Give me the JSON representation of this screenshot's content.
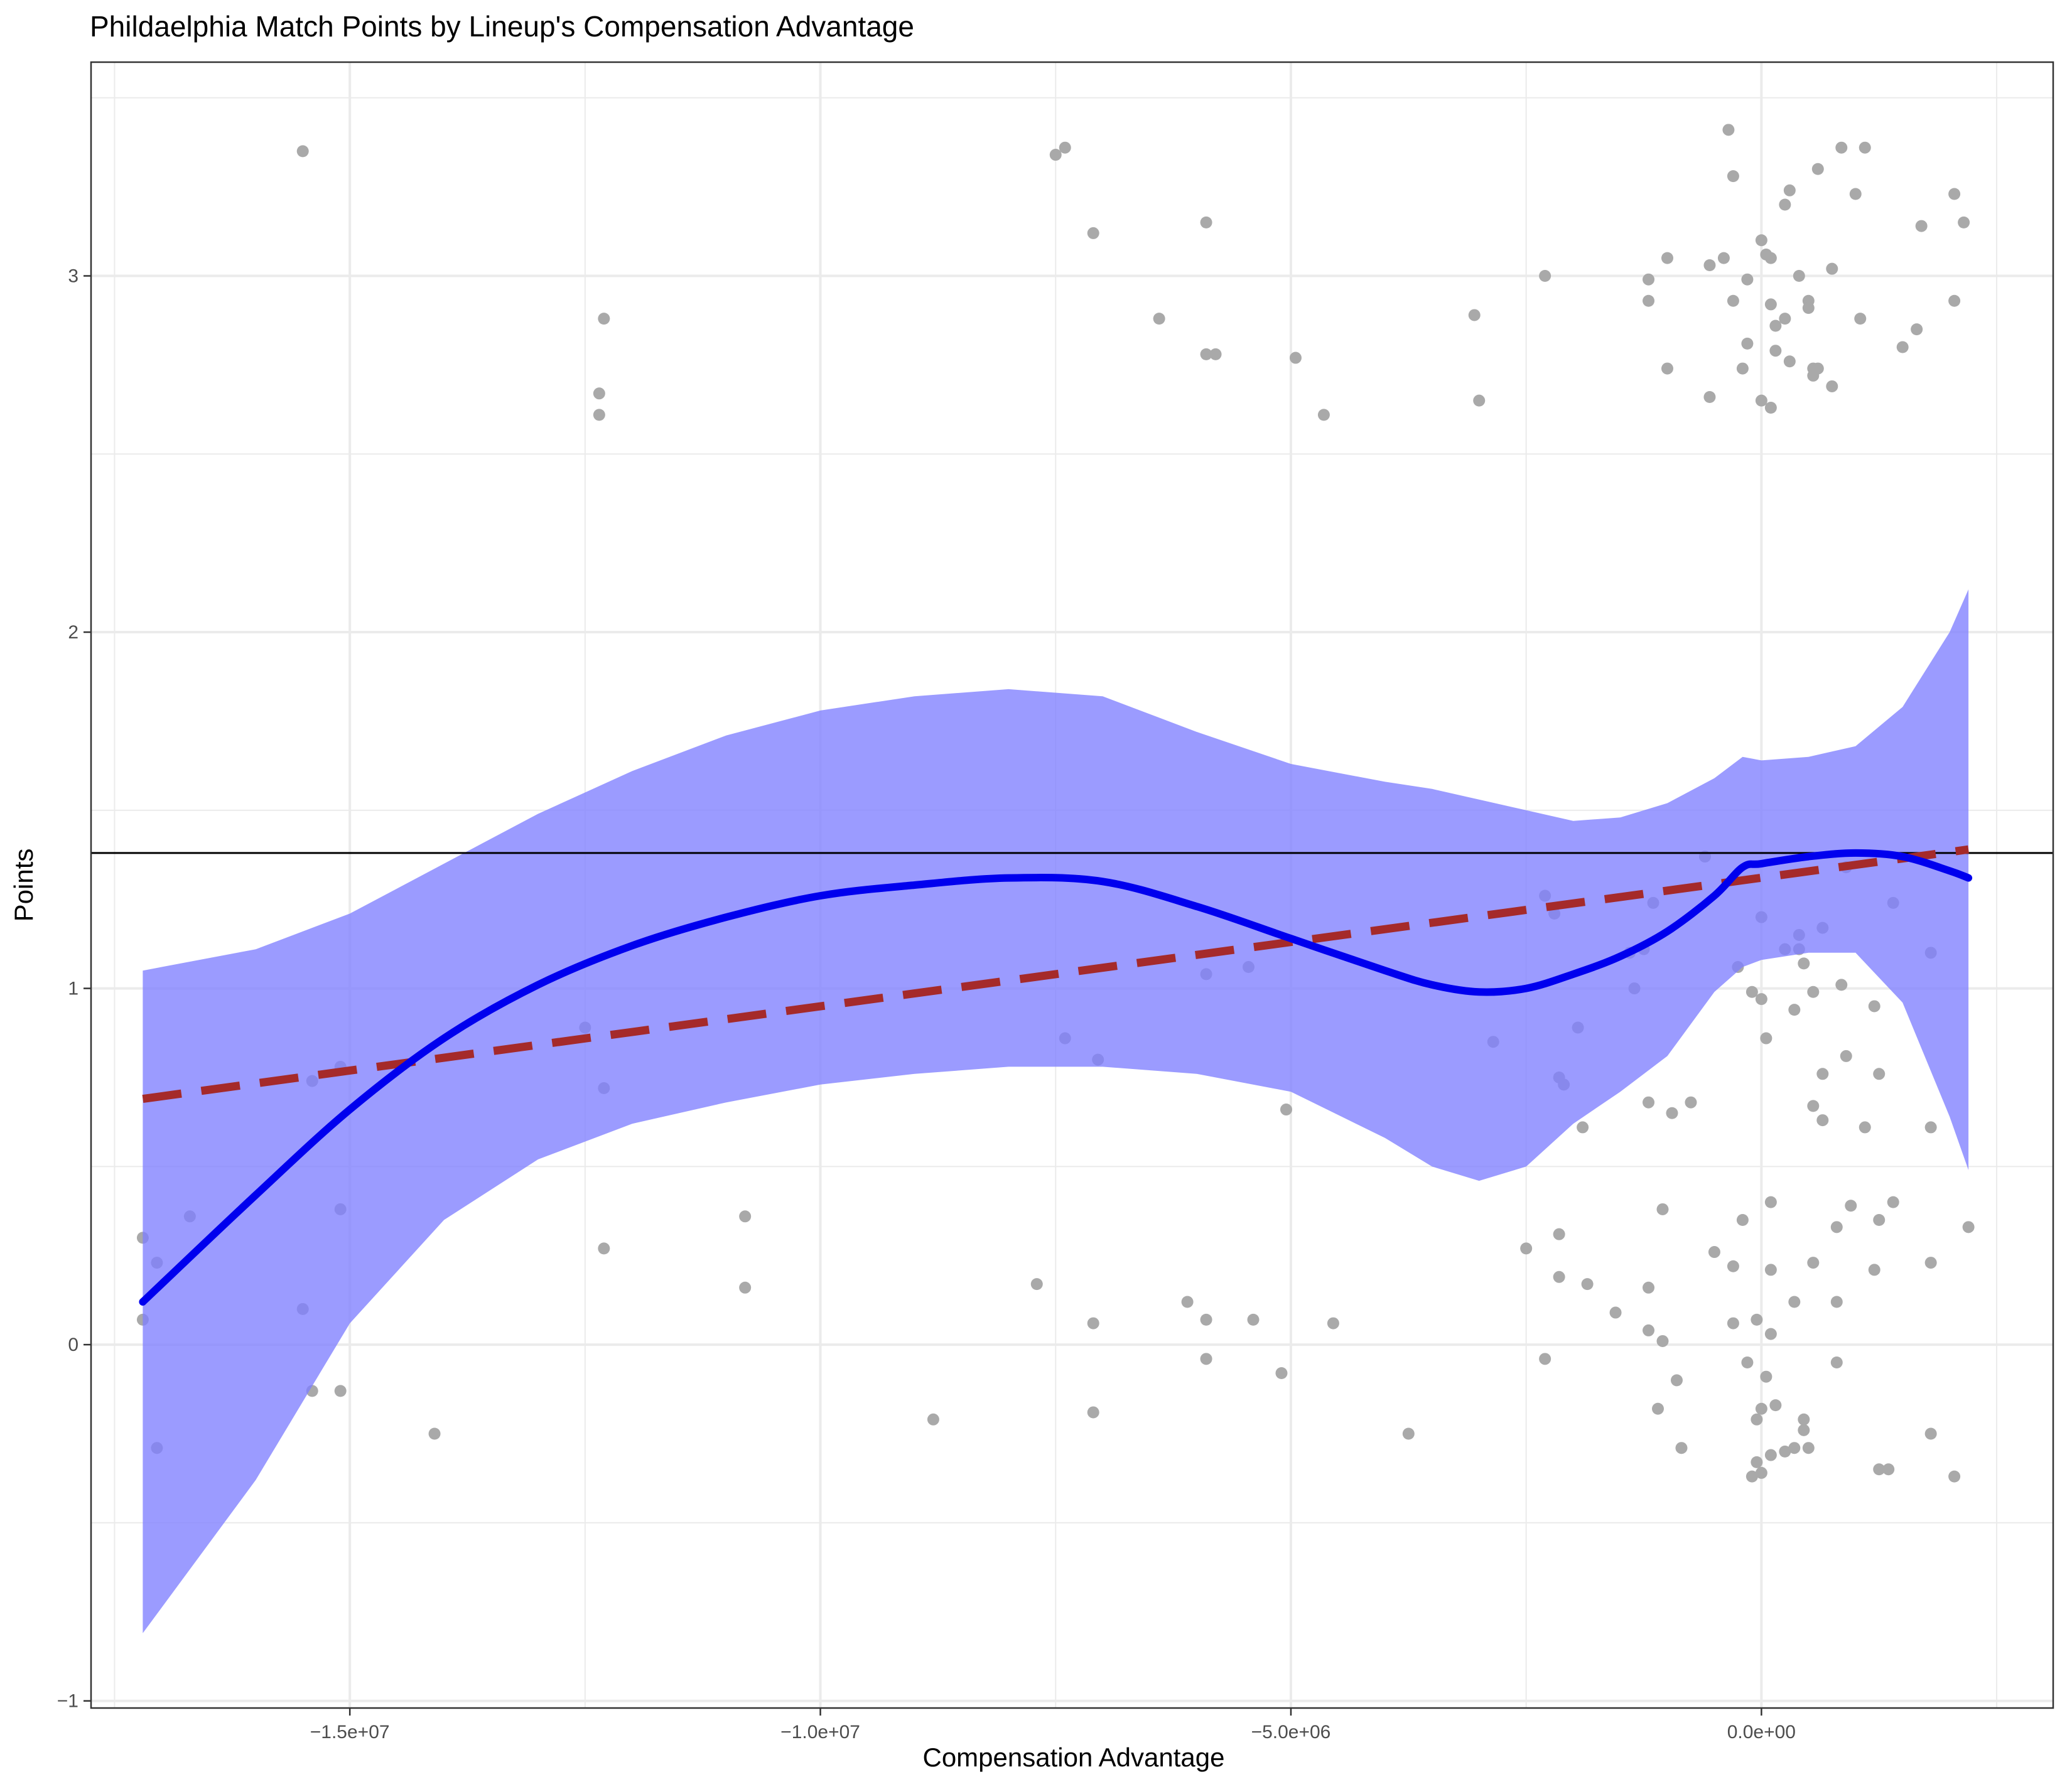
{
  "chart_data": {
    "type": "scatter",
    "title": "Phildaelphia Match Points by Lineup's Compensation Advantage",
    "xlabel": "Compensation Advantage",
    "ylabel": "Points",
    "xlim": [
      -17750000,
      3100000
    ],
    "ylim": [
      -1.02,
      3.6
    ],
    "x_ticks": [
      {
        "value": -15000000,
        "label": "−1.5e+07"
      },
      {
        "value": -10000000,
        "label": "−1.0e+07"
      },
      {
        "value": -5000000,
        "label": "−5.0e+06"
      },
      {
        "value": 0,
        "label": "0.0e+00"
      }
    ],
    "y_ticks": [
      {
        "value": -1,
        "label": "−1"
      },
      {
        "value": 0,
        "label": "0"
      },
      {
        "value": 1,
        "label": "1"
      },
      {
        "value": 2,
        "label": "2"
      },
      {
        "value": 3,
        "label": "3"
      }
    ],
    "grid": true,
    "colors": {
      "points": "#a9a9a9",
      "ribbon": "#7f7fff",
      "smooth": "#0000ee",
      "linear": "#a52a2a",
      "reference": "#000000",
      "grid": "#ebebeb"
    },
    "reference_line_y": 1.38,
    "linear_fit": {
      "x": [
        -17200000,
        2200000
      ],
      "y": [
        0.69,
        1.39
      ]
    },
    "smooth_fit": [
      {
        "x": -17200000,
        "y": 0.12,
        "lower": -0.81,
        "upper": 1.05
      },
      {
        "x": -16000000,
        "y": 0.42,
        "lower": -0.38,
        "upper": 1.11
      },
      {
        "x": -15000000,
        "y": 0.66,
        "lower": 0.06,
        "upper": 1.21
      },
      {
        "x": -14000000,
        "y": 0.86,
        "lower": 0.35,
        "upper": 1.35
      },
      {
        "x": -13000000,
        "y": 1.01,
        "lower": 0.52,
        "upper": 1.49
      },
      {
        "x": -12000000,
        "y": 1.12,
        "lower": 0.62,
        "upper": 1.61
      },
      {
        "x": -11000000,
        "y": 1.2,
        "lower": 0.68,
        "upper": 1.71
      },
      {
        "x": -10000000,
        "y": 1.26,
        "lower": 0.73,
        "upper": 1.78
      },
      {
        "x": -9000000,
        "y": 1.29,
        "lower": 0.76,
        "upper": 1.82
      },
      {
        "x": -8000000,
        "y": 1.31,
        "lower": 0.78,
        "upper": 1.84
      },
      {
        "x": -7000000,
        "y": 1.3,
        "lower": 0.78,
        "upper": 1.82
      },
      {
        "x": -6000000,
        "y": 1.23,
        "lower": 0.76,
        "upper": 1.72
      },
      {
        "x": -5000000,
        "y": 1.14,
        "lower": 0.71,
        "upper": 1.63
      },
      {
        "x": -4000000,
        "y": 1.05,
        "lower": 0.58,
        "upper": 1.58
      },
      {
        "x": -3500000,
        "y": 1.01,
        "lower": 0.5,
        "upper": 1.56
      },
      {
        "x": -3000000,
        "y": 0.99,
        "lower": 0.46,
        "upper": 1.53
      },
      {
        "x": -2500000,
        "y": 1.0,
        "lower": 0.5,
        "upper": 1.5
      },
      {
        "x": -2000000,
        "y": 1.04,
        "lower": 0.62,
        "upper": 1.47
      },
      {
        "x": -1500000,
        "y": 1.09,
        "lower": 0.71,
        "upper": 1.48
      },
      {
        "x": -1000000,
        "y": 1.16,
        "lower": 0.81,
        "upper": 1.52
      },
      {
        "x": -500000,
        "y": 1.26,
        "lower": 0.99,
        "upper": 1.59
      },
      {
        "x": -200000,
        "y": 1.34,
        "lower": 1.06,
        "upper": 1.65
      },
      {
        "x": 0,
        "y": 1.35,
        "lower": 1.08,
        "upper": 1.64
      },
      {
        "x": 500000,
        "y": 1.37,
        "lower": 1.1,
        "upper": 1.65
      },
      {
        "x": 1000000,
        "y": 1.38,
        "lower": 1.1,
        "upper": 1.68
      },
      {
        "x": 1500000,
        "y": 1.37,
        "lower": 0.96,
        "upper": 1.79
      },
      {
        "x": 2000000,
        "y": 1.33,
        "lower": 0.64,
        "upper": 2.0
      },
      {
        "x": 2200000,
        "y": 1.31,
        "lower": 0.49,
        "upper": 2.12
      }
    ],
    "points": [
      {
        "x": -17200000,
        "y": 0.3
      },
      {
        "x": -17200000,
        "y": 0.07
      },
      {
        "x": -17050000,
        "y": 0.23
      },
      {
        "x": -17050000,
        "y": -0.29
      },
      {
        "x": -16700000,
        "y": 0.36
      },
      {
        "x": -15500000,
        "y": 3.35
      },
      {
        "x": -15500000,
        "y": 0.1
      },
      {
        "x": -15400000,
        "y": 0.74
      },
      {
        "x": -15400000,
        "y": -0.13
      },
      {
        "x": -15100000,
        "y": 0.78
      },
      {
        "x": -15100000,
        "y": 0.38
      },
      {
        "x": -15100000,
        "y": -0.13
      },
      {
        "x": -14100000,
        "y": -0.25
      },
      {
        "x": -12500000,
        "y": 0.89
      },
      {
        "x": -12300000,
        "y": 2.88
      },
      {
        "x": -12350000,
        "y": 2.67
      },
      {
        "x": -12350000,
        "y": 2.61
      },
      {
        "x": -12300000,
        "y": 0.72
      },
      {
        "x": -12300000,
        "y": 0.27
      },
      {
        "x": -10800000,
        "y": 0.36
      },
      {
        "x": -10800000,
        "y": 0.16
      },
      {
        "x": -8800000,
        "y": -0.21
      },
      {
        "x": -7700000,
        "y": 0.17
      },
      {
        "x": -7500000,
        "y": 3.34
      },
      {
        "x": -7400000,
        "y": 3.36
      },
      {
        "x": -7400000,
        "y": 0.86
      },
      {
        "x": -7100000,
        "y": 3.12
      },
      {
        "x": -7100000,
        "y": 0.06
      },
      {
        "x": -7100000,
        "y": -0.19
      },
      {
        "x": -7050000,
        "y": 0.8
      },
      {
        "x": -6400000,
        "y": 2.88
      },
      {
        "x": -6100000,
        "y": 0.12
      },
      {
        "x": -5900000,
        "y": 3.15
      },
      {
        "x": -5900000,
        "y": 2.78
      },
      {
        "x": -5800000,
        "y": 2.78
      },
      {
        "x": -5900000,
        "y": 1.04
      },
      {
        "x": -5900000,
        "y": 0.07
      },
      {
        "x": -5900000,
        "y": -0.04
      },
      {
        "x": -5450000,
        "y": 1.06
      },
      {
        "x": -5400000,
        "y": 0.07
      },
      {
        "x": -5050000,
        "y": 0.66
      },
      {
        "x": -5100000,
        "y": -0.08
      },
      {
        "x": -4950000,
        "y": 2.77
      },
      {
        "x": -4650000,
        "y": 2.61
      },
      {
        "x": -4550000,
        "y": 0.06
      },
      {
        "x": -3750000,
        "y": -0.25
      },
      {
        "x": -3050000,
        "y": 2.89
      },
      {
        "x": -3000000,
        "y": 2.65
      },
      {
        "x": -2850000,
        "y": 0.85
      },
      {
        "x": -2500000,
        "y": 0.27
      },
      {
        "x": -2300000,
        "y": 3.0
      },
      {
        "x": -2300000,
        "y": 1.26
      },
      {
        "x": -2300000,
        "y": -0.04
      },
      {
        "x": -2200000,
        "y": 1.21
      },
      {
        "x": -2150000,
        "y": 0.75
      },
      {
        "x": -2100000,
        "y": 0.73
      },
      {
        "x": -2150000,
        "y": 0.31
      },
      {
        "x": -2150000,
        "y": 0.19
      },
      {
        "x": -1950000,
        "y": 0.89
      },
      {
        "x": -1900000,
        "y": 0.61
      },
      {
        "x": -1850000,
        "y": 0.17
      },
      {
        "x": -1550000,
        "y": 0.09
      },
      {
        "x": -1400000,
        "y": 1.1
      },
      {
        "x": -1350000,
        "y": 1.0
      },
      {
        "x": -1200000,
        "y": 2.99
      },
      {
        "x": -1200000,
        "y": 2.93
      },
      {
        "x": -1200000,
        "y": 0.68
      },
      {
        "x": -1200000,
        "y": 0.16
      },
      {
        "x": -1200000,
        "y": 0.04
      },
      {
        "x": -1150000,
        "y": 1.24
      },
      {
        "x": -1250000,
        "y": 1.11
      },
      {
        "x": -1050000,
        "y": 0.38
      },
      {
        "x": -1050000,
        "y": 0.01
      },
      {
        "x": -1100000,
        "y": -0.18
      },
      {
        "x": -1000000,
        "y": 3.05
      },
      {
        "x": -1000000,
        "y": 2.74
      },
      {
        "x": -950000,
        "y": 0.65
      },
      {
        "x": -900000,
        "y": -0.1
      },
      {
        "x": -850000,
        "y": -0.29
      },
      {
        "x": -750000,
        "y": 0.68
      },
      {
        "x": -600000,
        "y": 1.37
      },
      {
        "x": -550000,
        "y": 3.03
      },
      {
        "x": -550000,
        "y": 2.66
      },
      {
        "x": -500000,
        "y": 0.26
      },
      {
        "x": -400000,
        "y": 3.05
      },
      {
        "x": -350000,
        "y": 3.41
      },
      {
        "x": -300000,
        "y": 3.28
      },
      {
        "x": -300000,
        "y": 2.93
      },
      {
        "x": -300000,
        "y": 0.22
      },
      {
        "x": -300000,
        "y": 0.06
      },
      {
        "x": -250000,
        "y": 1.06
      },
      {
        "x": -200000,
        "y": 2.74
      },
      {
        "x": -200000,
        "y": 0.35
      },
      {
        "x": -150000,
        "y": 2.99
      },
      {
        "x": -150000,
        "y": 2.81
      },
      {
        "x": -150000,
        "y": -0.05
      },
      {
        "x": -100000,
        "y": 0.99
      },
      {
        "x": -100000,
        "y": -0.37
      },
      {
        "x": -50000,
        "y": 0.07
      },
      {
        "x": -50000,
        "y": -0.21
      },
      {
        "x": -50000,
        "y": -0.33
      },
      {
        "x": 0,
        "y": 3.1
      },
      {
        "x": 0,
        "y": 2.65
      },
      {
        "x": 0,
        "y": 1.2
      },
      {
        "x": 0,
        "y": 0.97
      },
      {
        "x": 0,
        "y": -0.18
      },
      {
        "x": 0,
        "y": -0.36
      },
      {
        "x": 50000,
        "y": 3.06
      },
      {
        "x": 50000,
        "y": 0.86
      },
      {
        "x": 50000,
        "y": -0.09
      },
      {
        "x": 100000,
        "y": 3.05
      },
      {
        "x": 100000,
        "y": 2.92
      },
      {
        "x": 100000,
        "y": 2.63
      },
      {
        "x": 100000,
        "y": 0.4
      },
      {
        "x": 100000,
        "y": 0.21
      },
      {
        "x": 100000,
        "y": 0.03
      },
      {
        "x": 100000,
        "y": -0.31
      },
      {
        "x": 150000,
        "y": 2.86
      },
      {
        "x": 150000,
        "y": 2.79
      },
      {
        "x": 150000,
        "y": -0.17
      },
      {
        "x": 250000,
        "y": 3.2
      },
      {
        "x": 250000,
        "y": 2.88
      },
      {
        "x": 250000,
        "y": 1.11
      },
      {
        "x": 250000,
        "y": -0.3
      },
      {
        "x": 300000,
        "y": 2.76
      },
      {
        "x": 300000,
        "y": 3.24
      },
      {
        "x": 350000,
        "y": 0.94
      },
      {
        "x": 350000,
        "y": 0.12
      },
      {
        "x": 350000,
        "y": -0.29
      },
      {
        "x": 400000,
        "y": 3.0
      },
      {
        "x": 400000,
        "y": 1.11
      },
      {
        "x": 400000,
        "y": 1.15
      },
      {
        "x": 450000,
        "y": 1.07
      },
      {
        "x": 450000,
        "y": -0.21
      },
      {
        "x": 450000,
        "y": -0.24
      },
      {
        "x": 500000,
        "y": 2.93
      },
      {
        "x": 500000,
        "y": 2.91
      },
      {
        "x": 500000,
        "y": -0.29
      },
      {
        "x": 550000,
        "y": 2.74
      },
      {
        "x": 550000,
        "y": 2.72
      },
      {
        "x": 550000,
        "y": 0.99
      },
      {
        "x": 550000,
        "y": 0.67
      },
      {
        "x": 550000,
        "y": 0.23
      },
      {
        "x": 600000,
        "y": 3.3
      },
      {
        "x": 600000,
        "y": 2.74
      },
      {
        "x": 650000,
        "y": 1.17
      },
      {
        "x": 650000,
        "y": 0.63
      },
      {
        "x": 650000,
        "y": 0.76
      },
      {
        "x": 750000,
        "y": 3.02
      },
      {
        "x": 750000,
        "y": 2.69
      },
      {
        "x": 800000,
        "y": 0.33
      },
      {
        "x": 800000,
        "y": 0.12
      },
      {
        "x": 800000,
        "y": -0.05
      },
      {
        "x": 850000,
        "y": 3.36
      },
      {
        "x": 850000,
        "y": 1.01
      },
      {
        "x": 900000,
        "y": 1.34
      },
      {
        "x": 900000,
        "y": 0.81
      },
      {
        "x": 950000,
        "y": 0.39
      },
      {
        "x": 1000000,
        "y": 3.23
      },
      {
        "x": 1050000,
        "y": 2.88
      },
      {
        "x": 1100000,
        "y": 3.36
      },
      {
        "x": 1100000,
        "y": 0.61
      },
      {
        "x": 1200000,
        "y": 0.95
      },
      {
        "x": 1200000,
        "y": 0.21
      },
      {
        "x": 1250000,
        "y": 0.76
      },
      {
        "x": 1250000,
        "y": 0.35
      },
      {
        "x": 1250000,
        "y": -0.35
      },
      {
        "x": 1350000,
        "y": -0.35
      },
      {
        "x": 1400000,
        "y": 1.24
      },
      {
        "x": 1400000,
        "y": 0.4
      },
      {
        "x": 1500000,
        "y": 2.8
      },
      {
        "x": 1650000,
        "y": 2.85
      },
      {
        "x": 1700000,
        "y": 3.14
      },
      {
        "x": 1800000,
        "y": 1.1
      },
      {
        "x": 1800000,
        "y": 0.61
      },
      {
        "x": 1800000,
        "y": 0.23
      },
      {
        "x": 1800000,
        "y": -0.25
      },
      {
        "x": 2050000,
        "y": 3.23
      },
      {
        "x": 2050000,
        "y": 2.93
      },
      {
        "x": 2050000,
        "y": -0.37
      },
      {
        "x": 2150000,
        "y": 3.15
      },
      {
        "x": 2200000,
        "y": 0.33
      }
    ]
  }
}
